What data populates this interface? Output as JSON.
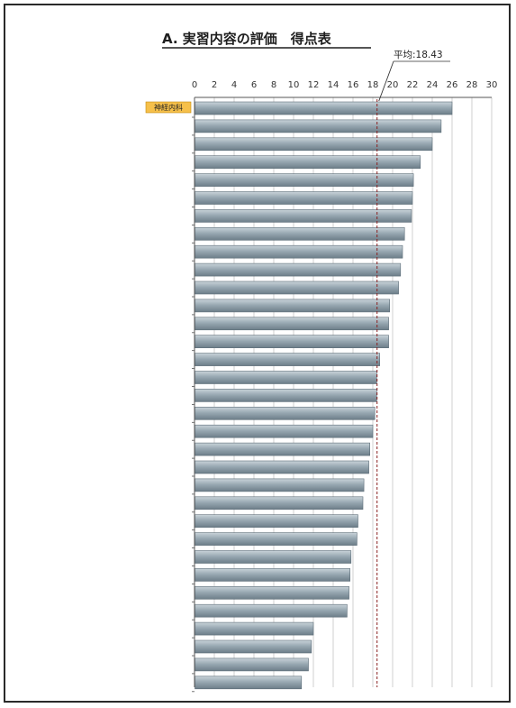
{
  "chart_data": {
    "type": "bar",
    "orientation": "horizontal",
    "title": "A. 実習内容の評価　得点表",
    "xlabel": "",
    "ylabel": "",
    "xlim": [
      0,
      30
    ],
    "x_ticks": [
      0,
      2,
      4,
      6,
      8,
      10,
      12,
      14,
      16,
      18,
      20,
      22,
      24,
      26,
      28,
      30
    ],
    "tick_labels": [
      "0",
      "2",
      "4",
      "6",
      "8",
      "10",
      "12",
      "14",
      "16",
      "18",
      "20",
      "22",
      "24",
      "26",
      "28",
      "30"
    ],
    "grid": true,
    "highlight": {
      "label": "神経内科",
      "index": 0,
      "color": "#f6c04a"
    },
    "mean_line": {
      "prefix": "平均",
      "value_text": "18.43",
      "value": 18.43,
      "color": "#8a2020"
    },
    "values": [
      26.0,
      24.9,
      24.0,
      22.8,
      22.1,
      22.0,
      21.9,
      21.2,
      21.0,
      20.8,
      20.6,
      19.7,
      19.6,
      19.6,
      18.7,
      18.4,
      18.4,
      18.2,
      18.0,
      17.7,
      17.6,
      17.1,
      17.0,
      16.5,
      16.4,
      15.8,
      15.7,
      15.6,
      15.4,
      12.0,
      11.8,
      11.5,
      10.8
    ],
    "bar_color": "#8fa0aa"
  }
}
